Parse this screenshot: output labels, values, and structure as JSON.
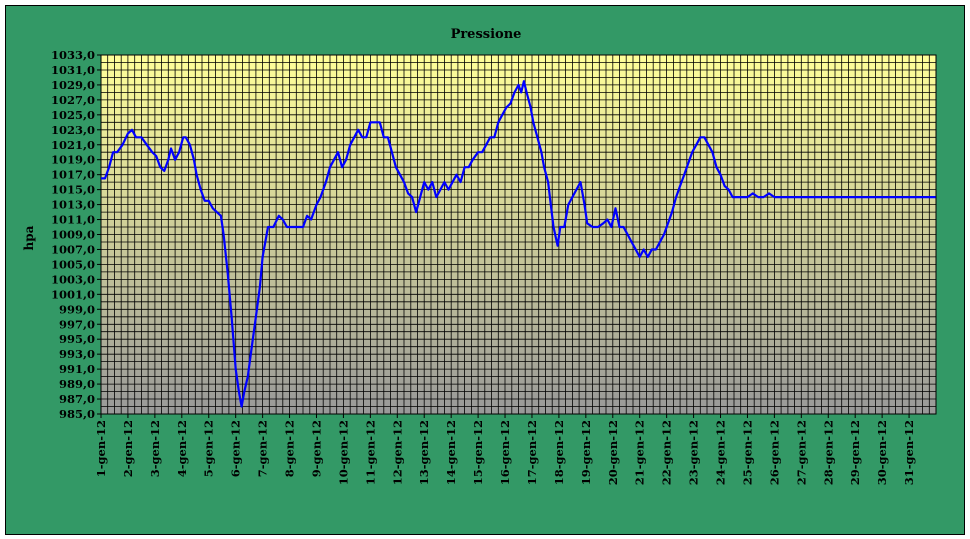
{
  "chart_data": {
    "type": "line",
    "title": "Pressione",
    "ylabel": "hpa",
    "xlabel": "",
    "ylim": [
      985,
      1033
    ],
    "y_ticks": [
      "985,0",
      "987,0",
      "989,0",
      "991,0",
      "993,0",
      "995,0",
      "997,0",
      "999,0",
      "1001,0",
      "1003,0",
      "1005,0",
      "1007,0",
      "1009,0",
      "1011,0",
      "1013,0",
      "1015,0",
      "1017,0",
      "1019,0",
      "1021,0",
      "1023,0",
      "1025,0",
      "1027,0",
      "1029,0",
      "1031,0",
      "1033,0"
    ],
    "categories": [
      "1-gen-12",
      "2-gen-12",
      "3-gen-12",
      "4-gen-12",
      "5-gen-12",
      "6-gen-12",
      "7-gen-12",
      "8-gen-12",
      "9-gen-12",
      "10-gen-12",
      "11-gen-12",
      "12-gen-12",
      "13-gen-12",
      "14-gen-12",
      "15-gen-12",
      "16-gen-12",
      "17-gen-12",
      "18-gen-12",
      "19-gen-12",
      "20-gen-12",
      "21-gen-12",
      "22-gen-12",
      "23-gen-12",
      "24-gen-12",
      "25-gen-12",
      "26-gen-12",
      "27-gen-12",
      "28-gen-12",
      "29-gen-12",
      "30-gen-12",
      "31-gen-12"
    ],
    "grid": true,
    "colors": {
      "line": "#0000ff",
      "frame_bg": "#339966",
      "plot_top": "#ffff99",
      "plot_bottom": "#999999",
      "grid": "#000000"
    },
    "series": [
      {
        "values": [
          {
            "x": 1.0,
            "y": 1016.5
          },
          {
            "x": 1.15,
            "y": 1016.5
          },
          {
            "x": 1.3,
            "y": 1018
          },
          {
            "x": 1.45,
            "y": 1020
          },
          {
            "x": 1.6,
            "y": 1020
          },
          {
            "x": 1.8,
            "y": 1021
          },
          {
            "x": 2.0,
            "y": 1022.5
          },
          {
            "x": 2.15,
            "y": 1023
          },
          {
            "x": 2.3,
            "y": 1022
          },
          {
            "x": 2.5,
            "y": 1022
          },
          {
            "x": 2.7,
            "y": 1021
          },
          {
            "x": 2.9,
            "y": 1020
          },
          {
            "x": 3.05,
            "y": 1019.5
          },
          {
            "x": 3.2,
            "y": 1018
          },
          {
            "x": 3.35,
            "y": 1017.5
          },
          {
            "x": 3.5,
            "y": 1019
          },
          {
            "x": 3.6,
            "y": 1020.5
          },
          {
            "x": 3.75,
            "y": 1019
          },
          {
            "x": 3.9,
            "y": 1020
          },
          {
            "x": 4.05,
            "y": 1022
          },
          {
            "x": 4.15,
            "y": 1022
          },
          {
            "x": 4.3,
            "y": 1021
          },
          {
            "x": 4.45,
            "y": 1019
          },
          {
            "x": 4.55,
            "y": 1017
          },
          {
            "x": 4.7,
            "y": 1015
          },
          {
            "x": 4.85,
            "y": 1013.5
          },
          {
            "x": 5.0,
            "y": 1013.5
          },
          {
            "x": 5.15,
            "y": 1012.5
          },
          {
            "x": 5.3,
            "y": 1012
          },
          {
            "x": 5.45,
            "y": 1011.5
          },
          {
            "x": 5.55,
            "y": 1009
          },
          {
            "x": 5.7,
            "y": 1004
          },
          {
            "x": 5.85,
            "y": 998
          },
          {
            "x": 6.0,
            "y": 991
          },
          {
            "x": 6.12,
            "y": 988
          },
          {
            "x": 6.22,
            "y": 986
          },
          {
            "x": 6.32,
            "y": 988
          },
          {
            "x": 6.45,
            "y": 990
          },
          {
            "x": 6.6,
            "y": 994
          },
          {
            "x": 6.75,
            "y": 998
          },
          {
            "x": 6.9,
            "y": 1002
          },
          {
            "x": 7.0,
            "y": 1006
          },
          {
            "x": 7.1,
            "y": 1008
          },
          {
            "x": 7.2,
            "y": 1010
          },
          {
            "x": 7.4,
            "y": 1010
          },
          {
            "x": 7.6,
            "y": 1011.5
          },
          {
            "x": 7.75,
            "y": 1011
          },
          {
            "x": 7.9,
            "y": 1010
          },
          {
            "x": 8.1,
            "y": 1010
          },
          {
            "x": 8.3,
            "y": 1010
          },
          {
            "x": 8.5,
            "y": 1010
          },
          {
            "x": 8.65,
            "y": 1011.5
          },
          {
            "x": 8.8,
            "y": 1011
          },
          {
            "x": 9.0,
            "y": 1013
          },
          {
            "x": 9.15,
            "y": 1014
          },
          {
            "x": 9.35,
            "y": 1016
          },
          {
            "x": 9.5,
            "y": 1018
          },
          {
            "x": 9.65,
            "y": 1019
          },
          {
            "x": 9.8,
            "y": 1020
          },
          {
            "x": 9.95,
            "y": 1018
          },
          {
            "x": 10.1,
            "y": 1019
          },
          {
            "x": 10.25,
            "y": 1021
          },
          {
            "x": 10.4,
            "y": 1022
          },
          {
            "x": 10.55,
            "y": 1023
          },
          {
            "x": 10.7,
            "y": 1022
          },
          {
            "x": 10.85,
            "y": 1022
          },
          {
            "x": 11.0,
            "y": 1024
          },
          {
            "x": 11.15,
            "y": 1024
          },
          {
            "x": 11.35,
            "y": 1024
          },
          {
            "x": 11.5,
            "y": 1022
          },
          {
            "x": 11.65,
            "y": 1022
          },
          {
            "x": 11.8,
            "y": 1020
          },
          {
            "x": 11.95,
            "y": 1018
          },
          {
            "x": 12.1,
            "y": 1017
          },
          {
            "x": 12.25,
            "y": 1016
          },
          {
            "x": 12.4,
            "y": 1014.5
          },
          {
            "x": 12.55,
            "y": 1014
          },
          {
            "x": 12.7,
            "y": 1012
          },
          {
            "x": 12.85,
            "y": 1014
          },
          {
            "x": 13.0,
            "y": 1016
          },
          {
            "x": 13.15,
            "y": 1015
          },
          {
            "x": 13.3,
            "y": 1016
          },
          {
            "x": 13.45,
            "y": 1014
          },
          {
            "x": 13.6,
            "y": 1015
          },
          {
            "x": 13.75,
            "y": 1016
          },
          {
            "x": 13.9,
            "y": 1015
          },
          {
            "x": 14.05,
            "y": 1016
          },
          {
            "x": 14.2,
            "y": 1017
          },
          {
            "x": 14.35,
            "y": 1016
          },
          {
            "x": 14.5,
            "y": 1018
          },
          {
            "x": 14.65,
            "y": 1018
          },
          {
            "x": 14.8,
            "y": 1019
          },
          {
            "x": 15.0,
            "y": 1020
          },
          {
            "x": 15.15,
            "y": 1020
          },
          {
            "x": 15.3,
            "y": 1021
          },
          {
            "x": 15.45,
            "y": 1022
          },
          {
            "x": 15.6,
            "y": 1022
          },
          {
            "x": 15.75,
            "y": 1024
          },
          {
            "x": 15.9,
            "y": 1025
          },
          {
            "x": 16.05,
            "y": 1026
          },
          {
            "x": 16.2,
            "y": 1026.5
          },
          {
            "x": 16.35,
            "y": 1028
          },
          {
            "x": 16.5,
            "y": 1029
          },
          {
            "x": 16.6,
            "y": 1028
          },
          {
            "x": 16.7,
            "y": 1029.5
          },
          {
            "x": 16.8,
            "y": 1028
          },
          {
            "x": 16.95,
            "y": 1026
          },
          {
            "x": 17.05,
            "y": 1024
          },
          {
            "x": 17.2,
            "y": 1022
          },
          {
            "x": 17.35,
            "y": 1020
          },
          {
            "x": 17.45,
            "y": 1018
          },
          {
            "x": 17.6,
            "y": 1016
          },
          {
            "x": 17.7,
            "y": 1013
          },
          {
            "x": 17.8,
            "y": 1010
          },
          {
            "x": 17.95,
            "y": 1007.5
          },
          {
            "x": 18.05,
            "y": 1010
          },
          {
            "x": 18.2,
            "y": 1010
          },
          {
            "x": 18.35,
            "y": 1013
          },
          {
            "x": 18.5,
            "y": 1014
          },
          {
            "x": 18.65,
            "y": 1015
          },
          {
            "x": 18.8,
            "y": 1016
          },
          {
            "x": 18.95,
            "y": 1013
          },
          {
            "x": 19.05,
            "y": 1010.5
          },
          {
            "x": 19.25,
            "y": 1010
          },
          {
            "x": 19.45,
            "y": 1010
          },
          {
            "x": 19.65,
            "y": 1010.5
          },
          {
            "x": 19.8,
            "y": 1011
          },
          {
            "x": 19.95,
            "y": 1010
          },
          {
            "x": 20.1,
            "y": 1012.5
          },
          {
            "x": 20.25,
            "y": 1010
          },
          {
            "x": 20.4,
            "y": 1010
          },
          {
            "x": 20.55,
            "y": 1009
          },
          {
            "x": 20.7,
            "y": 1008
          },
          {
            "x": 20.85,
            "y": 1007
          },
          {
            "x": 21.0,
            "y": 1006
          },
          {
            "x": 21.15,
            "y": 1007
          },
          {
            "x": 21.3,
            "y": 1006
          },
          {
            "x": 21.45,
            "y": 1007
          },
          {
            "x": 21.6,
            "y": 1007
          },
          {
            "x": 21.75,
            "y": 1008
          },
          {
            "x": 21.9,
            "y": 1009
          },
          {
            "x": 22.05,
            "y": 1010.5
          },
          {
            "x": 22.2,
            "y": 1012
          },
          {
            "x": 22.35,
            "y": 1014
          },
          {
            "x": 22.5,
            "y": 1015.5
          },
          {
            "x": 22.65,
            "y": 1017
          },
          {
            "x": 22.8,
            "y": 1018.5
          },
          {
            "x": 22.95,
            "y": 1020
          },
          {
            "x": 23.1,
            "y": 1021
          },
          {
            "x": 23.25,
            "y": 1022
          },
          {
            "x": 23.4,
            "y": 1022
          },
          {
            "x": 23.55,
            "y": 1021
          },
          {
            "x": 23.7,
            "y": 1020
          },
          {
            "x": 23.85,
            "y": 1018
          },
          {
            "x": 24.0,
            "y": 1017
          },
          {
            "x": 24.15,
            "y": 1015.5
          },
          {
            "x": 24.3,
            "y": 1015
          },
          {
            "x": 24.45,
            "y": 1014
          },
          {
            "x": 24.6,
            "y": 1014
          },
          {
            "x": 24.8,
            "y": 1014
          },
          {
            "x": 25.0,
            "y": 1014
          },
          {
            "x": 25.2,
            "y": 1014.5
          },
          {
            "x": 25.4,
            "y": 1014
          },
          {
            "x": 25.6,
            "y": 1014
          },
          {
            "x": 25.8,
            "y": 1014.5
          },
          {
            "x": 26.0,
            "y": 1014
          },
          {
            "x": 26.2,
            "y": 1014
          },
          {
            "x": 26.4,
            "y": 1014
          },
          {
            "x": 26.6,
            "y": 1014
          },
          {
            "x": 26.8,
            "y": 1014
          },
          {
            "x": 27.0,
            "y": 1014
          },
          {
            "x": 27.2,
            "y": 1014
          },
          {
            "x": 27.4,
            "y": 1014
          },
          {
            "x": 27.6,
            "y": 1014
          },
          {
            "x": 27.8,
            "y": 1014
          },
          {
            "x": 28.0,
            "y": 1014
          },
          {
            "x": 28.2,
            "y": 1014
          },
          {
            "x": 28.4,
            "y": 1014
          },
          {
            "x": 28.6,
            "y": 1014
          },
          {
            "x": 28.8,
            "y": 1014
          },
          {
            "x": 29.0,
            "y": 1014
          },
          {
            "x": 29.2,
            "y": 1014
          },
          {
            "x": 29.4,
            "y": 1014
          },
          {
            "x": 29.6,
            "y": 1014
          },
          {
            "x": 29.8,
            "y": 1014
          },
          {
            "x": 30.0,
            "y": 1014
          },
          {
            "x": 30.2,
            "y": 1014
          },
          {
            "x": 30.4,
            "y": 1014
          },
          {
            "x": 30.6,
            "y": 1014
          },
          {
            "x": 30.8,
            "y": 1014
          },
          {
            "x": 31.0,
            "y": 1014
          },
          {
            "x": 31.2,
            "y": 1014
          },
          {
            "x": 31.4,
            "y": 1014
          },
          {
            "x": 31.6,
            "y": 1014
          },
          {
            "x": 31.8,
            "y": 1014
          },
          {
            "x": 31.99,
            "y": 1014
          }
        ]
      }
    ]
  }
}
